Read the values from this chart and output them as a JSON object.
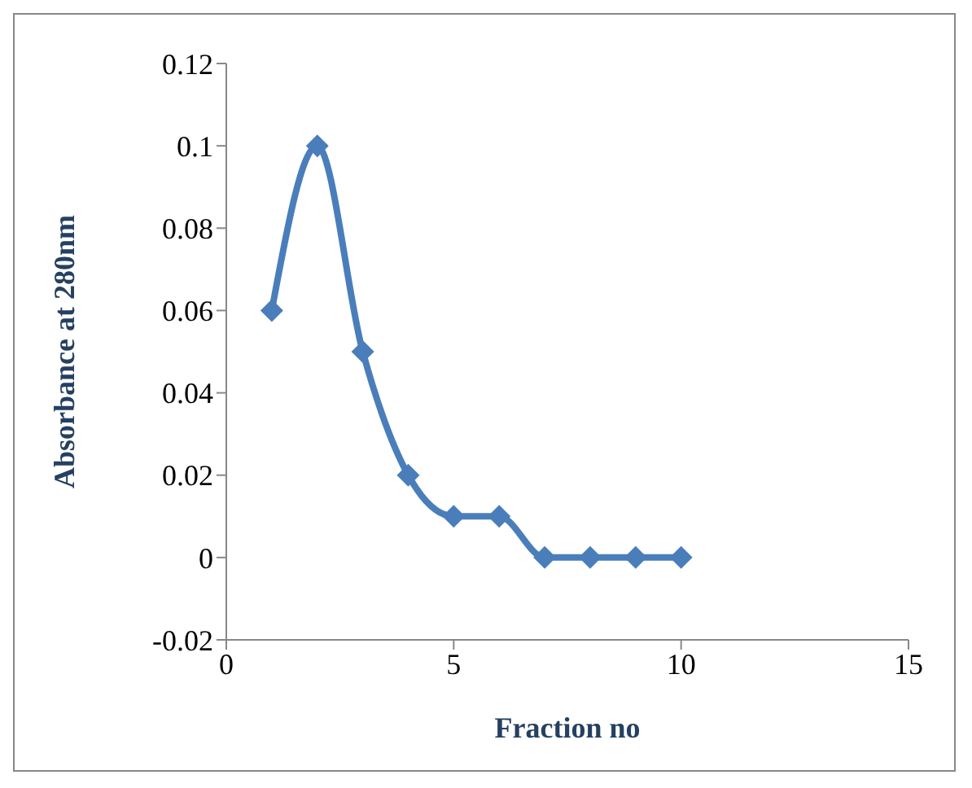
{
  "chart_data": {
    "type": "line",
    "xlabel": "Fraction no",
    "ylabel": "Absorbance at 280nm",
    "x": [
      1,
      2,
      3,
      4,
      5,
      6,
      7,
      8,
      9,
      10
    ],
    "series": [
      {
        "color": "#4a7ebb",
        "values": [
          0.06,
          0.1,
          0.05,
          0.02,
          0.01,
          0.01,
          0,
          0,
          0,
          0
        ]
      }
    ],
    "xlim": [
      0,
      15
    ],
    "xticks": [
      0,
      5,
      10,
      15
    ],
    "ylim": [
      -0.02,
      0.12
    ],
    "yticks": [
      -0.02,
      0,
      0.02,
      0.04,
      0.06,
      0.08,
      0.1,
      0.12
    ],
    "grid": false,
    "legend": false,
    "marker": "diamond",
    "line_style": "solid"
  }
}
